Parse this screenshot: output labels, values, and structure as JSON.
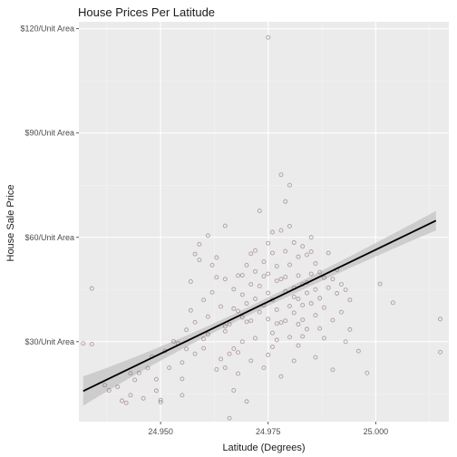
{
  "chart_data": {
    "type": "scatter",
    "title": "House Prices Per Latitude",
    "xlabel": "Latitude (Degrees)",
    "ylabel": "House Sale Price",
    "xlim": [
      24.931,
      25.017
    ],
    "ylim": [
      7,
      122
    ],
    "x_ticks": [
      24.95,
      24.975,
      25.0
    ],
    "x_tick_labels": [
      "24.950",
      "24.975",
      "25.000"
    ],
    "y_ticks": [
      30,
      60,
      90,
      120
    ],
    "y_tick_labels": [
      "$30/Unit Area",
      "$60/Unit Area",
      "$90/Unit Area",
      "$120/Unit Area"
    ],
    "grid": true,
    "legend": "none",
    "colors": {
      "panel": "#ebebeb",
      "points": "#6b3a4f",
      "fit_line": "#000000",
      "confidence_band": "#c8c8c8"
    },
    "fit": {
      "method": "linear",
      "x": [
        24.932,
        25.014
      ],
      "y": [
        15.8,
        64.8
      ],
      "ci_halfwidth_ends": [
        4.2,
        2.8
      ],
      "ci_halfwidth_mid": 1.2,
      "x_mid": 24.97
    },
    "points": [
      [
        24.932,
        29.5
      ],
      [
        24.934,
        45.3
      ],
      [
        24.934,
        29.3
      ],
      [
        24.937,
        17.5
      ],
      [
        24.938,
        16.0
      ],
      [
        24.94,
        17.0
      ],
      [
        24.941,
        13.0
      ],
      [
        24.942,
        12.4
      ],
      [
        24.943,
        20.9
      ],
      [
        24.943,
        14.6
      ],
      [
        24.944,
        19.0
      ],
      [
        24.945,
        21.0
      ],
      [
        24.946,
        13.7
      ],
      [
        24.947,
        22.4
      ],
      [
        24.948,
        25.7
      ],
      [
        24.949,
        19.2
      ],
      [
        24.949,
        15.9
      ],
      [
        24.95,
        13.2
      ],
      [
        24.95,
        12.6
      ],
      [
        24.951,
        27.3
      ],
      [
        24.952,
        22.5
      ],
      [
        24.953,
        30.1
      ],
      [
        24.954,
        29.5
      ],
      [
        24.955,
        19.3
      ],
      [
        24.955,
        14.6
      ],
      [
        24.956,
        27.9
      ],
      [
        24.956,
        33.4
      ],
      [
        24.957,
        39.0
      ],
      [
        24.957,
        47.3
      ],
      [
        24.958,
        35.6
      ],
      [
        24.958,
        55.2
      ],
      [
        24.959,
        58.0
      ],
      [
        24.959,
        53.5
      ],
      [
        24.96,
        30.8
      ],
      [
        24.96,
        42.0
      ],
      [
        24.961,
        37.2
      ],
      [
        24.961,
        32.1
      ],
      [
        24.962,
        52.0
      ],
      [
        24.963,
        22.0
      ],
      [
        24.963,
        48.5
      ],
      [
        24.964,
        25.0
      ],
      [
        24.964,
        40.1
      ],
      [
        24.965,
        33.0
      ],
      [
        24.965,
        34.4
      ],
      [
        24.965,
        22.5
      ],
      [
        24.965,
        48.0
      ],
      [
        24.966,
        26.5
      ],
      [
        24.966,
        35.0
      ],
      [
        24.967,
        16.0
      ],
      [
        24.967,
        45.1
      ],
      [
        24.967,
        28.0
      ],
      [
        24.968,
        49.0
      ],
      [
        24.968,
        38.8
      ],
      [
        24.968,
        20.8
      ],
      [
        24.969,
        43.5
      ],
      [
        24.969,
        30.0
      ],
      [
        24.969,
        37.0
      ],
      [
        24.97,
        52.0
      ],
      [
        24.97,
        41.0
      ],
      [
        24.97,
        35.7
      ],
      [
        24.971,
        46.5
      ],
      [
        24.971,
        36.0
      ],
      [
        24.971,
        24.5
      ],
      [
        24.972,
        42.3
      ],
      [
        24.972,
        31.0
      ],
      [
        24.972,
        50.2
      ],
      [
        24.973,
        67.6
      ],
      [
        24.973,
        46.0
      ],
      [
        24.973,
        38.5
      ],
      [
        24.974,
        53.0
      ],
      [
        24.974,
        40.5
      ],
      [
        24.974,
        22.5
      ],
      [
        24.975,
        117.5
      ],
      [
        24.975,
        58.3
      ],
      [
        24.975,
        49.5
      ],
      [
        24.975,
        44.0
      ],
      [
        24.975,
        36.5
      ],
      [
        24.975,
        26.2
      ],
      [
        24.976,
        55.5
      ],
      [
        24.976,
        42.0
      ],
      [
        24.976,
        32.5
      ],
      [
        24.976,
        28.5
      ],
      [
        24.977,
        51.7
      ],
      [
        24.977,
        47.5
      ],
      [
        24.977,
        39.2
      ],
      [
        24.977,
        30.5
      ],
      [
        24.978,
        78.0
      ],
      [
        24.978,
        62.0
      ],
      [
        24.978,
        48.0
      ],
      [
        24.978,
        35.5
      ],
      [
        24.978,
        20.0
      ],
      [
        24.979,
        70.3
      ],
      [
        24.979,
        56.0
      ],
      [
        24.979,
        44.5
      ],
      [
        24.979,
        36.0
      ],
      [
        24.98,
        75.0
      ],
      [
        24.98,
        63.2
      ],
      [
        24.98,
        52.1
      ],
      [
        24.98,
        40.2
      ],
      [
        24.98,
        31.3
      ],
      [
        24.981,
        58.5
      ],
      [
        24.981,
        45.5
      ],
      [
        24.981,
        38.3
      ],
      [
        24.981,
        24.5
      ],
      [
        24.982,
        54.4
      ],
      [
        24.982,
        49.0
      ],
      [
        24.982,
        42.3
      ],
      [
        24.982,
        35.0
      ],
      [
        24.983,
        57.4
      ],
      [
        24.983,
        46.5
      ],
      [
        24.983,
        40.5
      ],
      [
        24.983,
        31.5
      ],
      [
        24.984,
        55.0
      ],
      [
        24.984,
        47.0
      ],
      [
        24.984,
        44.0
      ],
      [
        24.984,
        33.6
      ],
      [
        24.985,
        60.0
      ],
      [
        24.985,
        49.5
      ],
      [
        24.985,
        41.0
      ],
      [
        24.986,
        52.5
      ],
      [
        24.986,
        45.0
      ],
      [
        24.986,
        37.6
      ],
      [
        24.986,
        25.5
      ],
      [
        24.987,
        50.0
      ],
      [
        24.987,
        42.5
      ],
      [
        24.987,
        33.8
      ],
      [
        24.988,
        48.4
      ],
      [
        24.988,
        39.8
      ],
      [
        24.988,
        31.0
      ],
      [
        24.989,
        55.5
      ],
      [
        24.989,
        45.5
      ],
      [
        24.99,
        48.0
      ],
      [
        24.99,
        36.2
      ],
      [
        24.99,
        21.9
      ],
      [
        24.991,
        50.7
      ],
      [
        24.991,
        43.9
      ],
      [
        24.992,
        46.5
      ],
      [
        24.992,
        38.5
      ],
      [
        24.993,
        44.9
      ],
      [
        24.993,
        30.0
      ],
      [
        24.994,
        33.5
      ],
      [
        24.994,
        42.0
      ],
      [
        24.996,
        27.3
      ],
      [
        25.001,
        46.6
      ],
      [
        24.998,
        21.0
      ],
      [
        25.004,
        41.2
      ],
      [
        25.015,
        27.0
      ],
      [
        25.015,
        36.5
      ],
      [
        24.961,
        60.5
      ],
      [
        24.965,
        63.3
      ],
      [
        24.963,
        54.2
      ],
      [
        24.958,
        26.5
      ],
      [
        24.966,
        8.0
      ],
      [
        24.962,
        44.2
      ],
      [
        24.955,
        24.0
      ],
      [
        24.97,
        12.8
      ],
      [
        24.971,
        55.3
      ],
      [
        24.974,
        48.8
      ],
      [
        24.976,
        61.5
      ],
      [
        24.979,
        48.6
      ],
      [
        24.985,
        55.9
      ],
      [
        24.983,
        36.3
      ],
      [
        24.967,
        39.5
      ],
      [
        24.969,
        49.1
      ],
      [
        24.972,
        56.2
      ],
      [
        24.981,
        42.9
      ],
      [
        24.968,
        26.9
      ],
      [
        24.96,
        28.1
      ],
      [
        24.977,
        35.2
      ],
      [
        24.982,
        28.9
      ]
    ]
  }
}
